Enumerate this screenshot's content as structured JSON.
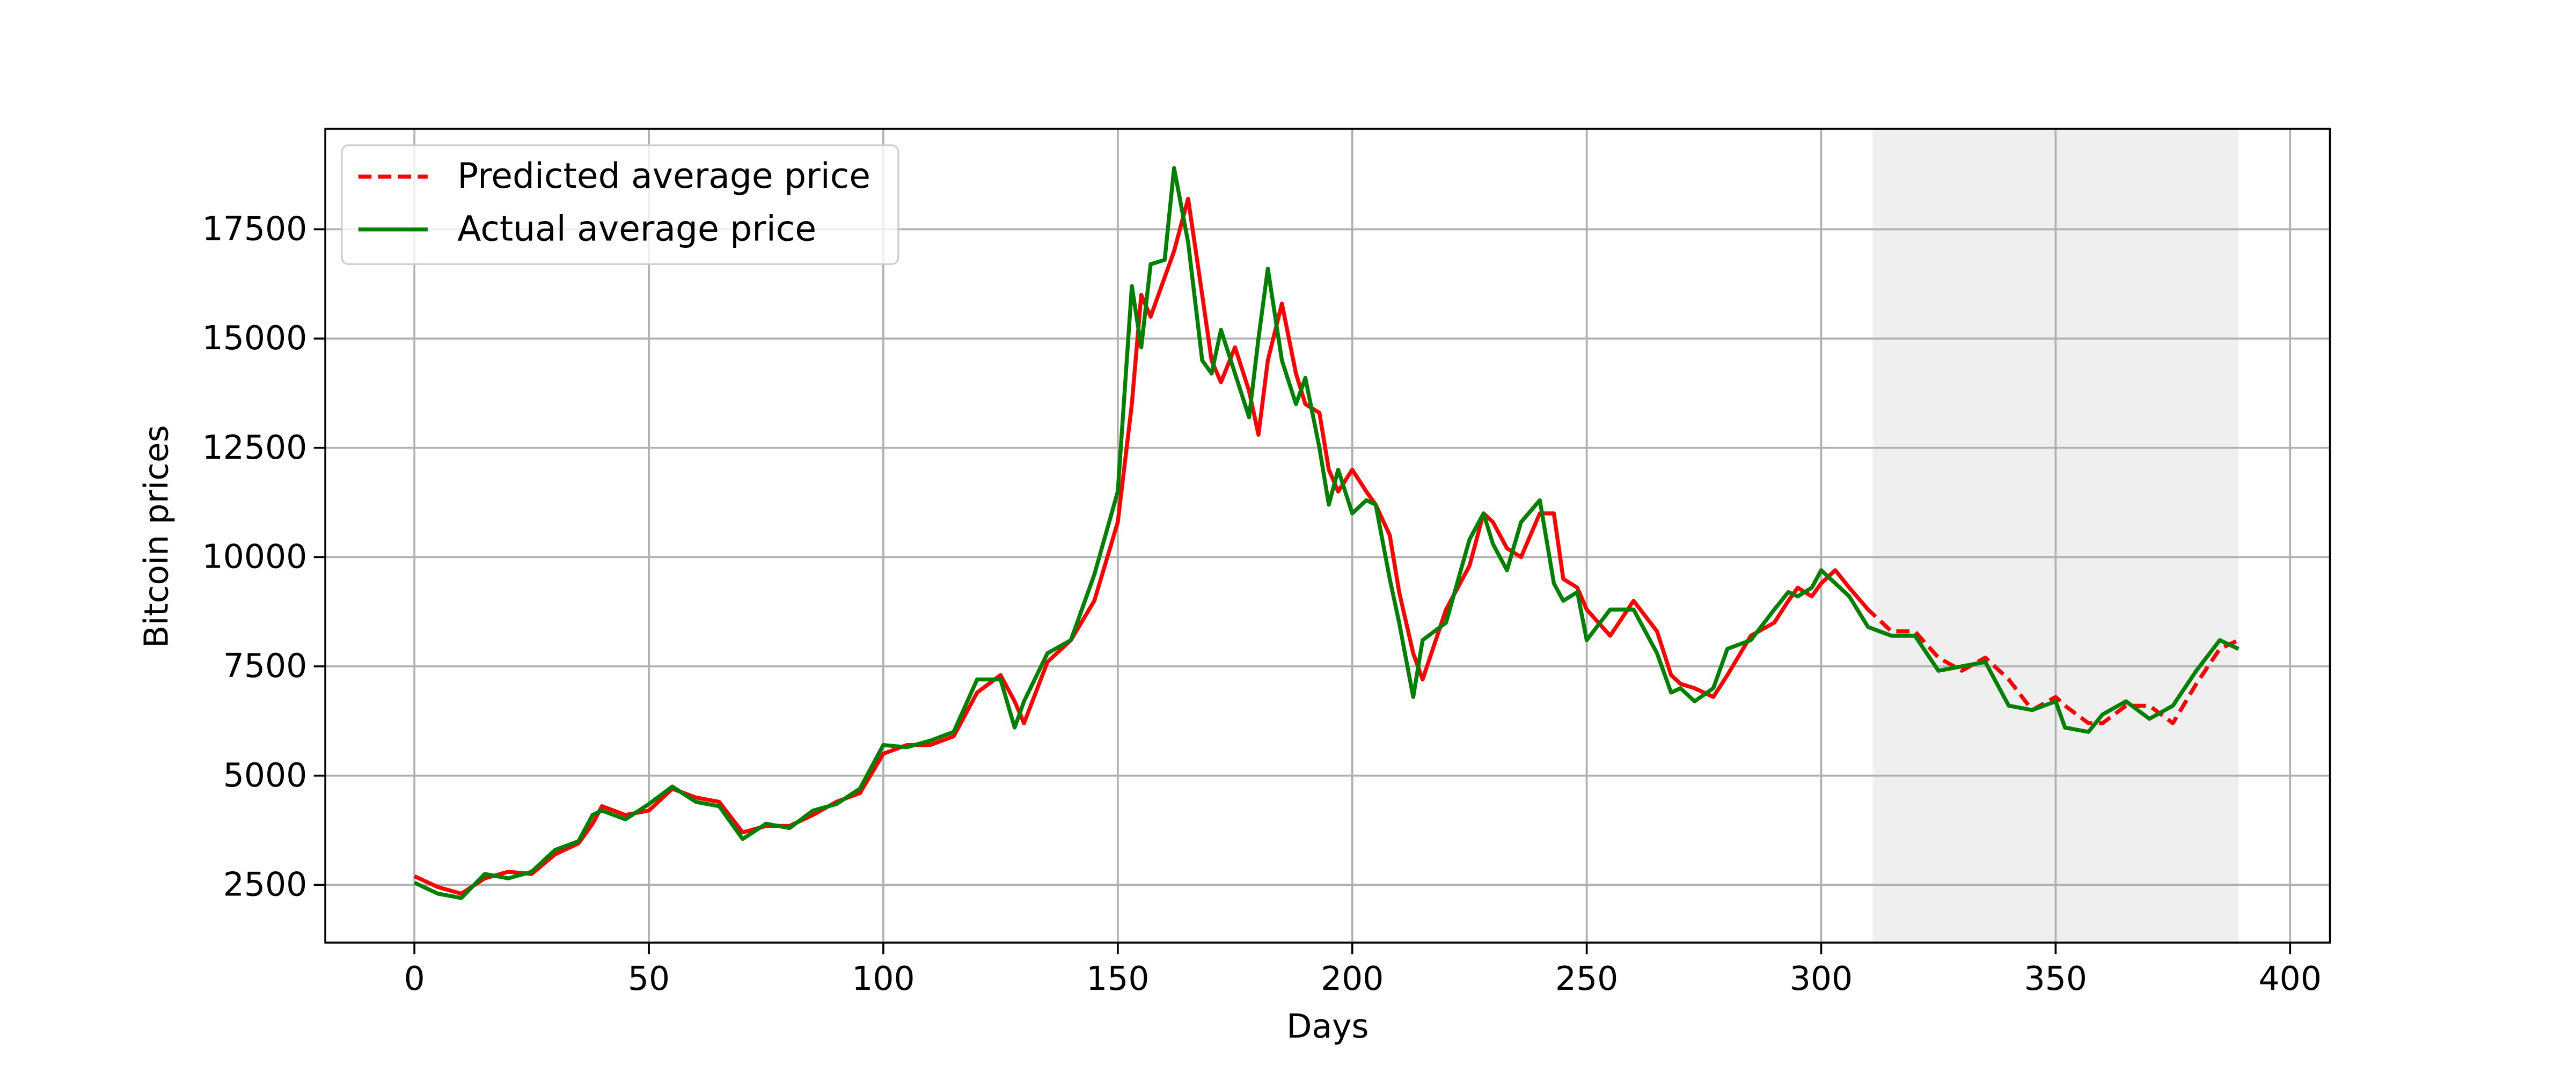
{
  "chart_data": {
    "type": "line",
    "xlabel": "Days",
    "ylabel": "Bitcoin prices",
    "x": [
      0,
      5,
      10,
      15,
      20,
      25,
      30,
      35,
      38,
      40,
      45,
      50,
      55,
      60,
      65,
      70,
      75,
      80,
      85,
      90,
      95,
      100,
      105,
      110,
      115,
      120,
      125,
      128,
      130,
      135,
      140,
      145,
      150,
      153,
      155,
      157,
      160,
      162,
      165,
      168,
      170,
      172,
      175,
      178,
      180,
      182,
      185,
      188,
      190,
      193,
      195,
      197,
      200,
      203,
      205,
      208,
      210,
      213,
      215,
      220,
      225,
      228,
      230,
      233,
      236,
      240,
      243,
      245,
      248,
      250,
      255,
      260,
      265,
      268,
      270,
      273,
      277,
      280,
      285,
      290,
      293,
      295,
      298,
      300,
      303,
      306,
      310,
      315,
      320,
      325,
      330,
      335,
      340,
      345,
      350,
      352,
      357,
      360,
      365,
      370,
      375,
      380,
      385,
      389
    ],
    "series": [
      {
        "name": "Predicted average price",
        "color": "#ff0000",
        "linestyle": "dashed",
        "values": [
          2700,
          2450,
          2300,
          2650,
          2800,
          2750,
          3200,
          3450,
          3900,
          4300,
          4100,
          4200,
          4700,
          4500,
          4400,
          3700,
          3850,
          3850,
          4100,
          4400,
          4600,
          5500,
          5700,
          5700,
          5900,
          6900,
          7300,
          6700,
          6200,
          7600,
          8100,
          9000,
          10800,
          13500,
          16000,
          15500,
          16400,
          17000,
          18200,
          16000,
          14500,
          14000,
          14800,
          13800,
          12800,
          14500,
          15800,
          14200,
          13500,
          13300,
          12000,
          11500,
          12000,
          11500,
          11200,
          10500,
          9200,
          7800,
          7200,
          8800,
          9800,
          11000,
          10800,
          10200,
          10000,
          11000,
          11000,
          9500,
          9300,
          8800,
          8200,
          9000,
          8300,
          7300,
          7100,
          7000,
          6800,
          7300,
          8200,
          8500,
          9000,
          9300,
          9100,
          9400,
          9700,
          9300,
          8800,
          8300,
          8300,
          7700,
          7400,
          7700,
          7200,
          6500,
          6800,
          6600,
          6200,
          6200,
          6600,
          6600,
          6200,
          7100,
          7900,
          8100
        ]
      },
      {
        "name": "Actual average price",
        "color": "#008000",
        "linestyle": "solid",
        "values": [
          2550,
          2300,
          2200,
          2750,
          2650,
          2800,
          3300,
          3500,
          4100,
          4200,
          4000,
          4350,
          4750,
          4400,
          4300,
          3550,
          3900,
          3800,
          4200,
          4350,
          4700,
          5700,
          5650,
          5800,
          6000,
          7200,
          7200,
          6100,
          6700,
          7800,
          8100,
          9600,
          11500,
          16200,
          14800,
          16700,
          16800,
          18900,
          17200,
          14500,
          14200,
          15200,
          14200,
          13200,
          15000,
          16600,
          14500,
          13500,
          14100,
          12500,
          11200,
          12000,
          11000,
          11300,
          11200,
          9500,
          8500,
          6800,
          8100,
          8500,
          10400,
          11000,
          10300,
          9700,
          10800,
          11300,
          9400,
          9000,
          9200,
          8100,
          8800,
          8800,
          7800,
          6900,
          7000,
          6700,
          7000,
          7900,
          8100,
          8800,
          9200,
          9100,
          9300,
          9700,
          9400,
          9100,
          8400,
          8200,
          8200,
          7400,
          7500,
          7600,
          6600,
          6500,
          6700,
          6100,
          6000,
          6400,
          6700,
          6300,
          6600,
          7400,
          8100,
          7900
        ]
      }
    ],
    "shade": {
      "xlim": [
        311,
        389
      ],
      "color": "#efefef"
    },
    "xlim": [
      -19,
      408.5
    ],
    "ylim": [
      1180,
      19800
    ],
    "xticks": [
      0,
      50,
      100,
      150,
      200,
      250,
      300,
      350,
      400
    ],
    "yticks": [
      2500,
      5000,
      7500,
      10000,
      12500,
      15000,
      17500
    ],
    "grid": true,
    "legend": "upper left"
  }
}
